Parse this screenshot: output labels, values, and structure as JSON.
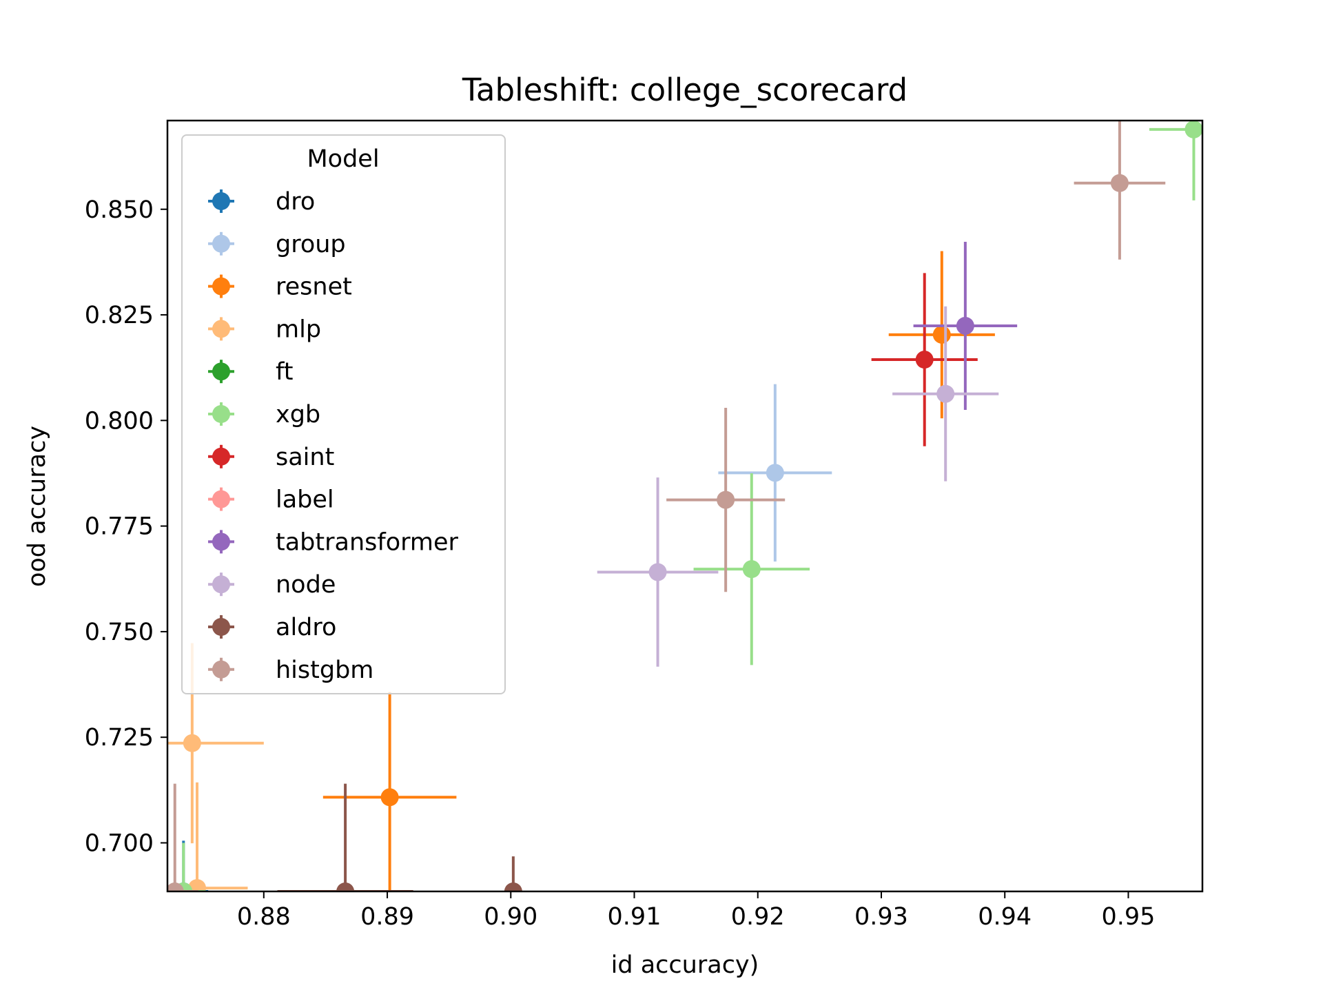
{
  "chart_data": {
    "type": "scatter",
    "title": "Tableshift: college_scorecard",
    "xlabel": "id accuracy)",
    "ylabel": "ood accuracy",
    "xlim": [
      0.8722,
      0.956
    ],
    "ylim": [
      0.6885,
      0.871
    ],
    "xticks": [
      "0.88",
      "0.89",
      "0.90",
      "0.91",
      "0.92",
      "0.93",
      "0.94",
      "0.95"
    ],
    "yticks": [
      "0.700",
      "0.725",
      "0.750",
      "0.775",
      "0.800",
      "0.825",
      "0.850"
    ],
    "grid": false,
    "legend": {
      "title": "Model",
      "position": "upper-left"
    },
    "series": [
      {
        "name": "dro",
        "color": "#1f77b4",
        "points": [
          {
            "x": 0.8735,
            "y": 0.6885,
            "xerr": 0.002,
            "yerr": 0.012
          }
        ]
      },
      {
        "name": "group",
        "color": "#aec7e8",
        "points": [
          {
            "x": 0.9214,
            "y": 0.7876,
            "xerr": 0.0046,
            "yerr": 0.021
          }
        ]
      },
      {
        "name": "resnet",
        "color": "#ff7f0e",
        "points": [
          {
            "x": 0.9349,
            "y": 0.8203,
            "xerr": 0.0043,
            "yerr": 0.0198
          },
          {
            "x": 0.8902,
            "y": 0.7108,
            "xerr": 0.0054,
            "yerr": 0.0249
          }
        ]
      },
      {
        "name": "mlp",
        "color": "#ffbb78",
        "points": [
          {
            "x": 0.8742,
            "y": 0.7236,
            "xerr": 0.0058,
            "yerr": 0.0237
          },
          {
            "x": 0.8746,
            "y": 0.6893,
            "xerr": 0.0041,
            "yerr": 0.025
          }
        ]
      },
      {
        "name": "ft",
        "color": "#2ca02c",
        "points": []
      },
      {
        "name": "xgb",
        "color": "#98df8a",
        "points": [
          {
            "x": 0.9195,
            "y": 0.7648,
            "xerr": 0.0047,
            "yerr": 0.0227
          },
          {
            "x": 0.9553,
            "y": 0.8689,
            "xerr": 0.0036,
            "yerr": 0.0168
          },
          {
            "x": 0.8735,
            "y": 0.6885,
            "xerr": 0.0018,
            "yerr": 0.0115
          }
        ]
      },
      {
        "name": "saint",
        "color": "#d62728",
        "points": [
          {
            "x": 0.9335,
            "y": 0.8144,
            "xerr": 0.0043,
            "yerr": 0.0205
          }
        ]
      },
      {
        "name": "label",
        "color": "#ff9896",
        "points": []
      },
      {
        "name": "tabtransformer",
        "color": "#9467bd",
        "points": [
          {
            "x": 0.9368,
            "y": 0.8224,
            "xerr": 0.0042,
            "yerr": 0.0199
          }
        ]
      },
      {
        "name": "node",
        "color": "#c5b0d5",
        "points": [
          {
            "x": 0.9352,
            "y": 0.8063,
            "xerr": 0.0043,
            "yerr": 0.0207
          },
          {
            "x": 0.9119,
            "y": 0.7641,
            "xerr": 0.0049,
            "yerr": 0.0224
          }
        ]
      },
      {
        "name": "aldro",
        "color": "#8c564b",
        "points": [
          {
            "x": 0.8866,
            "y": 0.6885,
            "xerr": 0.0055,
            "yerr": 0.0255
          },
          {
            "x": 0.9002,
            "y": 0.6885,
            "xerr": 0.0,
            "yerr": 0.0083
          }
        ]
      },
      {
        "name": "histgbm",
        "color": "#c49c94",
        "points": [
          {
            "x": 0.9493,
            "y": 0.8562,
            "xerr": 0.0037,
            "yerr": 0.0181
          },
          {
            "x": 0.9174,
            "y": 0.7812,
            "xerr": 0.0048,
            "yerr": 0.0218
          },
          {
            "x": 0.8728,
            "y": 0.6885,
            "xerr": 0.0019,
            "yerr": 0.0255
          }
        ]
      }
    ]
  }
}
